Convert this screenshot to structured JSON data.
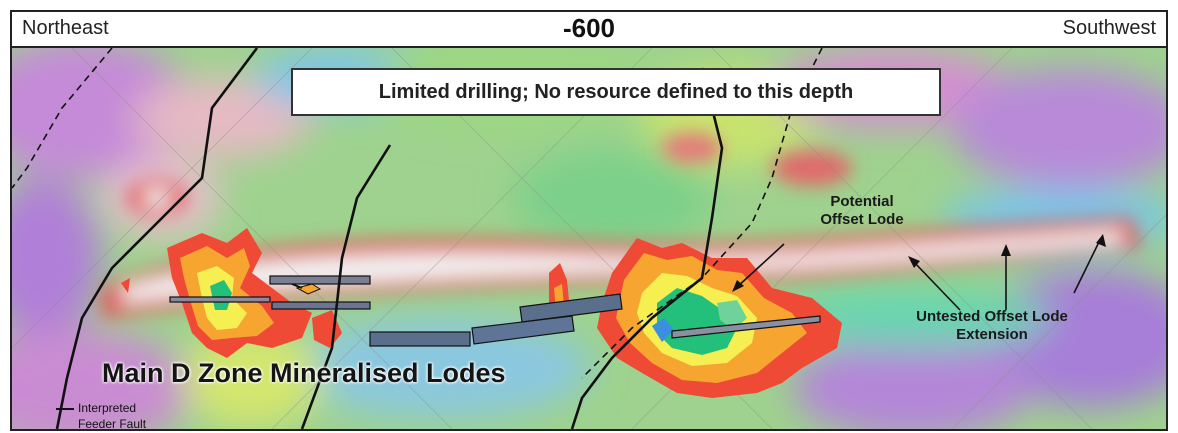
{
  "header": {
    "left_label": "Northeast",
    "center_label": "-600",
    "right_label": "Southwest"
  },
  "callout": {
    "text": "Limited drilling; No resource defined to this depth"
  },
  "annotations": {
    "potential_offset_lode": [
      "Potential",
      "Offset Lode"
    ],
    "untested_offset_lode": [
      "Untested Offset Lode",
      "Extension"
    ],
    "main_zone": "Main D Zone Mineralised Lodes"
  },
  "legend": {
    "feeder_fault": [
      "Interpreted",
      "Feeder Fault"
    ]
  },
  "colors": {
    "low_field": "#b07fd8",
    "mid_low_field": "#6fc8e8",
    "mid_field": "#8fd88a",
    "high_field": "#e05a5a",
    "magnetic_high_core": "#f2f2f2",
    "anomaly_outer": "#ee4a36",
    "anomaly_orange": "#f6a531",
    "anomaly_yellow": "#f6ef52",
    "anomaly_green": "#22c07a",
    "anomaly_blue": "#3b8fe0",
    "fault_line": "#111111",
    "drill_trace": "#5a6f8c"
  }
}
